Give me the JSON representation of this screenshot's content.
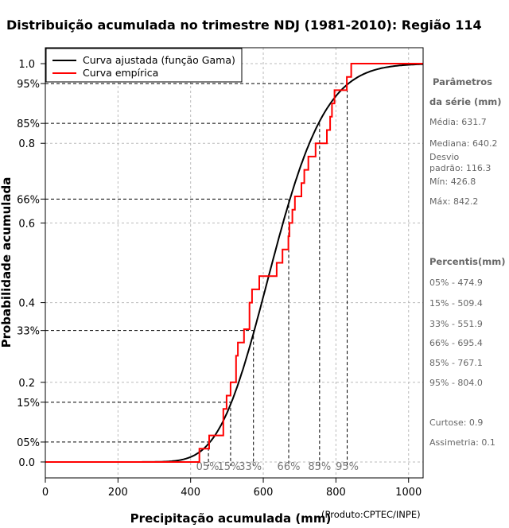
{
  "chart_data": {
    "type": "line",
    "title": "Distribuição acumulada no trimestre NDJ (1981-2010): Região 114",
    "xlabel": "Precipitação acumulada (mm)",
    "ylabel": "Probabilidade acumulada",
    "credit": "(Produto:CPTEC/INPE)",
    "xlim": [
      0,
      1040
    ],
    "ylim": [
      -0.04,
      1.04
    ],
    "x_ticks": [
      "0",
      "200",
      "400",
      "600",
      "800",
      "1000"
    ],
    "x_tick_values": [
      0,
      200,
      400,
      600,
      800,
      1000
    ],
    "y_ticks": [
      "0.0",
      "0.2",
      "0.4",
      "0.6",
      "0.8",
      "1.0"
    ],
    "y_tick_values": [
      0,
      0.2,
      0.4,
      0.6,
      0.8,
      1.0
    ],
    "grid": true,
    "legend_position": "top-left",
    "series": [
      {
        "name": "Curva ajustada (função Gama)",
        "color": "#000000",
        "gamma_mean": 631.7,
        "gamma_sd": 116.3
      },
      {
        "name": "Curva empírica",
        "color": "#ff0000",
        "values": [
          424,
          451,
          490,
          490,
          499,
          510,
          525,
          525,
          530,
          547,
          562,
          562,
          569,
          589,
          637,
          653,
          669,
          672,
          680,
          687,
          705,
          713,
          724,
          744,
          775,
          784,
          789,
          796,
          830,
          842
        ]
      }
    ],
    "percentile_lines": [
      {
        "label": "05%",
        "prob": 0.05,
        "x": 449
      },
      {
        "label": "15%",
        "prob": 0.15,
        "x": 510
      },
      {
        "label": "33%",
        "prob": 0.33,
        "x": 573
      },
      {
        "label": "66%",
        "prob": 0.66,
        "x": 670
      },
      {
        "label": "85%",
        "prob": 0.85,
        "x": 755
      },
      {
        "label": "95%",
        "prob": 0.95,
        "x": 831
      }
    ]
  },
  "side_panel": {
    "params_title_1": "Parâmetros",
    "params_title_2": "da série (mm)",
    "media": "Média: 631.7",
    "mediana": "Mediana: 640.2",
    "desvio_1": "Desvio",
    "desvio_2": "padrão: 116.3",
    "min": "Mín: 426.8",
    "max": "Máx: 842.2",
    "percentis_title": "Percentis(mm)",
    "percentis": [
      "05% - 474.9",
      "15% - 509.4",
      "33% - 551.9",
      "66% - 695.4",
      "85% - 767.1",
      "95% - 804.0"
    ],
    "curtose": "Curtose: 0.9",
    "assimetria": "Assimetria: 0.1"
  }
}
